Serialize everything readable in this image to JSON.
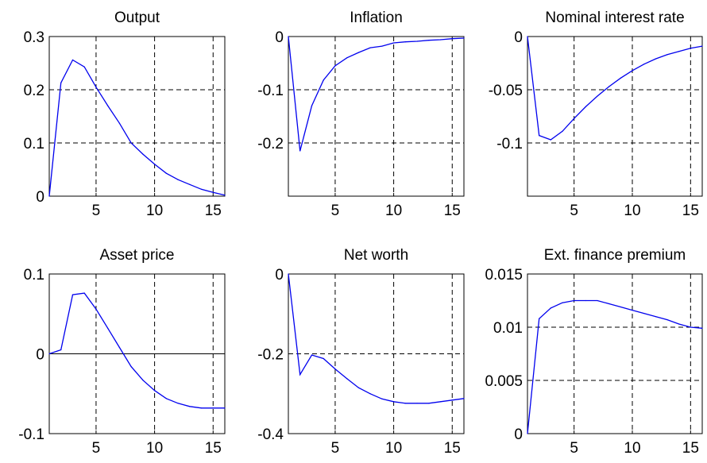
{
  "figure": {
    "line_color": "#0000ee"
  },
  "chart_data": [
    {
      "type": "line",
      "title": "Output",
      "xlim": [
        1,
        16
      ],
      "ylim": [
        0,
        0.3
      ],
      "xticks": [
        {
          "v": 5,
          "label": "5"
        },
        {
          "v": 10,
          "label": "10"
        },
        {
          "v": 15,
          "label": "15"
        }
      ],
      "yticks": [
        {
          "v": 0,
          "label": "0"
        },
        {
          "v": 0.1,
          "label": "0.1"
        },
        {
          "v": 0.2,
          "label": "0.2"
        },
        {
          "v": 0.3,
          "label": "0.3"
        }
      ],
      "grid": true,
      "zero_line": false,
      "x": [
        1,
        2,
        3,
        4,
        5,
        6,
        7,
        8,
        9,
        10,
        11,
        12,
        13,
        14,
        15,
        16
      ],
      "y": [
        0,
        0.213,
        0.256,
        0.243,
        0.205,
        0.17,
        0.137,
        0.1,
        0.079,
        0.06,
        0.043,
        0.031,
        0.022,
        0.013,
        0.007,
        0.002
      ]
    },
    {
      "type": "line",
      "title": "Inflation",
      "xlim": [
        1,
        16
      ],
      "ylim": [
        -0.3,
        0
      ],
      "xticks": [
        {
          "v": 5,
          "label": "5"
        },
        {
          "v": 10,
          "label": "10"
        },
        {
          "v": 15,
          "label": "15"
        }
      ],
      "yticks": [
        {
          "v": -0.2,
          "label": "-0.2"
        },
        {
          "v": -0.1,
          "label": "-0.1"
        },
        {
          "v": 0,
          "label": "0"
        }
      ],
      "grid": true,
      "zero_line": false,
      "x": [
        1,
        2,
        3,
        4,
        5,
        6,
        7,
        8,
        9,
        10,
        11,
        12,
        13,
        14,
        15,
        16
      ],
      "y": [
        0,
        -0.215,
        -0.13,
        -0.082,
        -0.055,
        -0.04,
        -0.03,
        -0.021,
        -0.018,
        -0.012,
        -0.01,
        -0.009,
        -0.007,
        -0.006,
        -0.004,
        -0.003
      ]
    },
    {
      "type": "line",
      "title": "Nominal interest rate",
      "xlim": [
        1,
        16
      ],
      "ylim": [
        -0.15,
        0
      ],
      "xticks": [
        {
          "v": 5,
          "label": "5"
        },
        {
          "v": 10,
          "label": "10"
        },
        {
          "v": 15,
          "label": "15"
        }
      ],
      "yticks": [
        {
          "v": -0.1,
          "label": "-0.1"
        },
        {
          "v": -0.05,
          "label": "-0.05"
        },
        {
          "v": 0,
          "label": "0"
        }
      ],
      "grid": true,
      "zero_line": false,
      "x": [
        1,
        2,
        3,
        4,
        5,
        6,
        7,
        8,
        9,
        10,
        11,
        12,
        13,
        14,
        15,
        16
      ],
      "y": [
        0,
        -0.093,
        -0.097,
        -0.089,
        -0.077,
        -0.066,
        -0.056,
        -0.047,
        -0.039,
        -0.032,
        -0.026,
        -0.021,
        -0.017,
        -0.014,
        -0.011,
        -0.009
      ]
    },
    {
      "type": "line",
      "title": "Asset price",
      "xlim": [
        1,
        16
      ],
      "ylim": [
        -0.1,
        0.1
      ],
      "xticks": [
        {
          "v": 5,
          "label": "5"
        },
        {
          "v": 10,
          "label": "10"
        },
        {
          "v": 15,
          "label": "15"
        }
      ],
      "yticks": [
        {
          "v": -0.1,
          "label": "-0.1"
        },
        {
          "v": 0,
          "label": "0"
        },
        {
          "v": 0.1,
          "label": "0.1"
        }
      ],
      "grid": true,
      "zero_line": true,
      "x": [
        1,
        2,
        3,
        4,
        5,
        6,
        7,
        8,
        9,
        10,
        11,
        12,
        13,
        14,
        15,
        16
      ],
      "y": [
        0,
        0.005,
        0.074,
        0.076,
        0.056,
        0.032,
        0.008,
        -0.016,
        -0.033,
        -0.046,
        -0.056,
        -0.062,
        -0.066,
        -0.068,
        -0.068,
        -0.068
      ]
    },
    {
      "type": "line",
      "title": "Net worth",
      "xlim": [
        1,
        16
      ],
      "ylim": [
        -0.4,
        0
      ],
      "xticks": [
        {
          "v": 5,
          "label": "5"
        },
        {
          "v": 10,
          "label": "10"
        },
        {
          "v": 15,
          "label": "15"
        }
      ],
      "yticks": [
        {
          "v": -0.4,
          "label": "-0.4"
        },
        {
          "v": -0.2,
          "label": "-0.2"
        },
        {
          "v": 0,
          "label": "0"
        }
      ],
      "grid": true,
      "zero_line": false,
      "x": [
        1,
        2,
        3,
        4,
        5,
        6,
        7,
        8,
        9,
        10,
        11,
        12,
        13,
        14,
        15,
        16
      ],
      "y": [
        0,
        -0.252,
        -0.203,
        -0.212,
        -0.238,
        -0.262,
        -0.285,
        -0.3,
        -0.313,
        -0.32,
        -0.324,
        -0.324,
        -0.324,
        -0.32,
        -0.316,
        -0.312
      ]
    },
    {
      "type": "line",
      "title": "Ext. finance premium",
      "xlim": [
        1,
        16
      ],
      "ylim": [
        0,
        0.015
      ],
      "xticks": [
        {
          "v": 5,
          "label": "5"
        },
        {
          "v": 10,
          "label": "10"
        },
        {
          "v": 15,
          "label": "15"
        }
      ],
      "yticks": [
        {
          "v": 0,
          "label": "0"
        },
        {
          "v": 0.005,
          "label": "0.005"
        },
        {
          "v": 0.01,
          "label": "0.01"
        },
        {
          "v": 0.015,
          "label": "0.015"
        }
      ],
      "grid": true,
      "zero_line": false,
      "x": [
        1,
        2,
        3,
        4,
        5,
        6,
        7,
        8,
        9,
        10,
        11,
        12,
        13,
        14,
        15,
        16
      ],
      "y": [
        0,
        0.0108,
        0.0118,
        0.0123,
        0.0125,
        0.0125,
        0.0125,
        0.0122,
        0.0119,
        0.0116,
        0.0113,
        0.011,
        0.0107,
        0.0103,
        0.01,
        0.0099
      ]
    }
  ]
}
